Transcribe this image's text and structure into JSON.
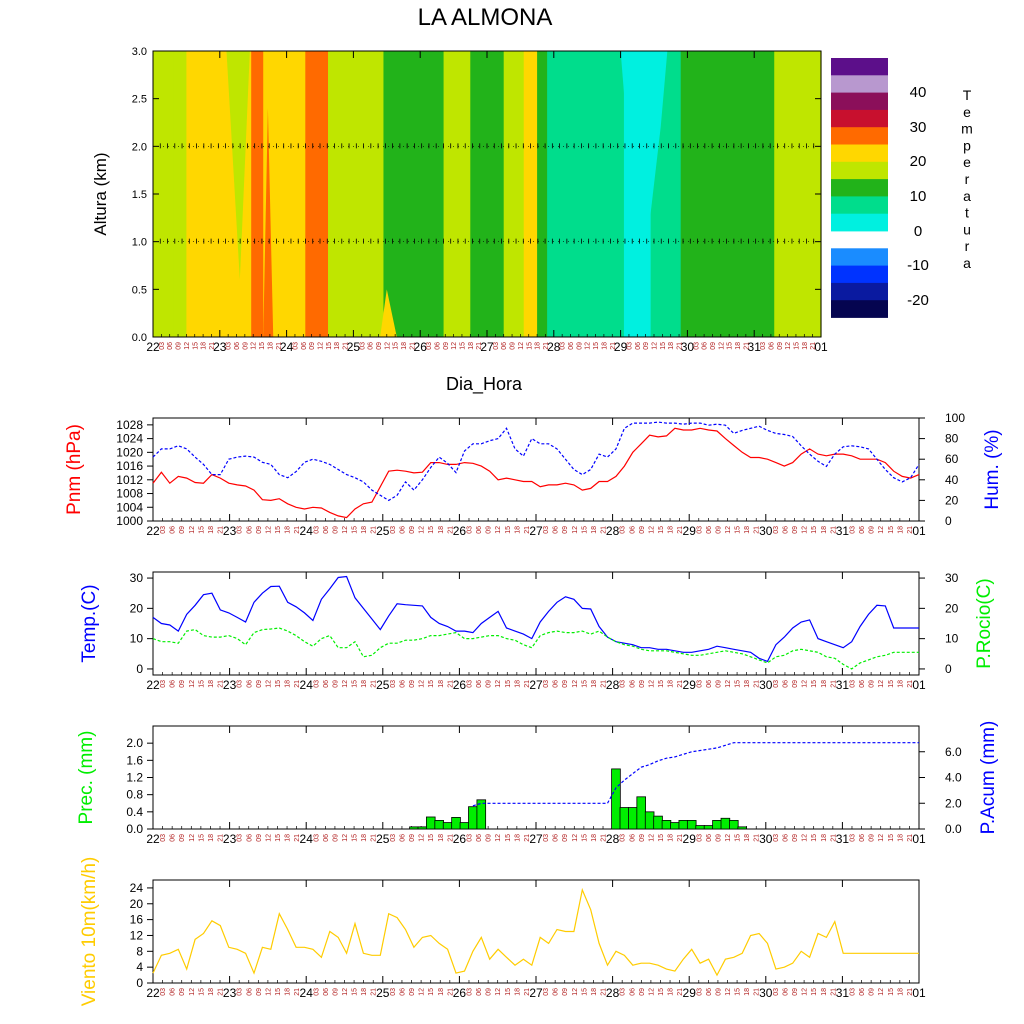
{
  "title": "LA ALMONA",
  "chart_data": [
    {
      "id": "profile",
      "type": "heatmap",
      "title": "LA ALMONA",
      "xlabel": "Dia_Hora",
      "ylabel": "Altura (km)",
      "ylim": [
        0,
        3
      ],
      "yticks": [
        "0.0",
        "0.5",
        "1.0",
        "1.5",
        "2.0",
        "2.5",
        "3.0"
      ],
      "xlim": [
        0,
        10
      ],
      "day_labels": [
        "22",
        "23",
        "24",
        "25",
        "26",
        "27",
        "28",
        "29",
        "30",
        "31",
        "01"
      ],
      "hour_labels": [
        "03",
        "06",
        "09",
        "12",
        "15",
        "18",
        "21"
      ],
      "colorbar": {
        "label_letters": [
          "T",
          "e",
          "m",
          "p",
          "e",
          "r",
          "a",
          "t",
          "u",
          "r",
          "a"
        ],
        "labels": [
          "40",
          "30",
          "20",
          "10",
          "0",
          "-10",
          "-20"
        ],
        "colors": [
          "#5c0f8a",
          "#b898cf",
          "#8b0f5a",
          "#c8102e",
          "#ff6a00",
          "#ffd700",
          "#bfe600",
          "#22b31a",
          "#00dd8c",
          "#00f0e0",
          "#ffffff",
          "#1a8cff",
          "#0033ff",
          "#0a1aa0",
          "#050550"
        ]
      },
      "bands": [
        {
          "start": 0.0,
          "end": 0.3,
          "temp": 18
        },
        {
          "start": 0.3,
          "end": 0.5,
          "temp": 20
        },
        {
          "start": 0.5,
          "end": 1.47,
          "temp": 22
        },
        {
          "start": 1.47,
          "end": 1.65,
          "temp": 27
        },
        {
          "start": 1.65,
          "end": 2.28,
          "temp": 22
        },
        {
          "start": 2.28,
          "end": 2.62,
          "temp": 27
        },
        {
          "start": 2.62,
          "end": 3.45,
          "temp": 18
        },
        {
          "start": 3.45,
          "end": 3.85,
          "temp": 12
        },
        {
          "start": 3.85,
          "end": 4.35,
          "temp": 12
        },
        {
          "start": 4.35,
          "end": 4.75,
          "temp": 18
        },
        {
          "start": 4.75,
          "end": 5.25,
          "temp": 12
        },
        {
          "start": 5.25,
          "end": 5.55,
          "temp": 18
        },
        {
          "start": 5.55,
          "end": 5.75,
          "temp": 22
        },
        {
          "start": 5.75,
          "end": 5.9,
          "temp": 12
        },
        {
          "start": 5.9,
          "end": 7.05,
          "temp": 5
        },
        {
          "start": 7.05,
          "end": 7.45,
          "temp": 3
        },
        {
          "start": 7.45,
          "end": 7.9,
          "temp": 5
        },
        {
          "start": 7.9,
          "end": 8.7,
          "temp": 12
        },
        {
          "start": 8.7,
          "end": 9.0,
          "temp": 12
        },
        {
          "start": 9.0,
          "end": 9.3,
          "temp": 12
        },
        {
          "start": 9.3,
          "end": 10.0,
          "temp": 18
        }
      ]
    },
    {
      "id": "pressure",
      "type": "line",
      "ylabel_left": "Pnm (hPa)",
      "ylabel_right": "Hum. (%)",
      "ylim_left": [
        1000,
        1030
      ],
      "ylim_right": [
        0,
        100
      ],
      "yticks_left": [
        "1000",
        "1004",
        "1008",
        "1012",
        "1016",
        "1020",
        "1024",
        "1028"
      ],
      "yticks_right": [
        "0",
        "20",
        "40",
        "60",
        "80",
        "100"
      ],
      "series": [
        {
          "name": "Pnm (hPa)",
          "color": "#ff0000",
          "axis": "left",
          "values": [
            1011.0,
            1014.2,
            1011.0,
            1013.0,
            1012.5,
            1011.2,
            1011.0,
            1013.5,
            1012.5,
            1011.0,
            1010.5,
            1010.2,
            1009.0,
            1006.2,
            1006.0,
            1006.5,
            1005.0,
            1004.0,
            1003.5,
            1004.0,
            1003.8,
            1002.5,
            1001.5,
            1001.0,
            1003.5,
            1005.0,
            1005.5,
            1010.0,
            1014.5,
            1014.8,
            1014.5,
            1014.0,
            1014.2,
            1017.0,
            1017.0,
            1016.5,
            1016.5,
            1017.0,
            1016.8,
            1016.0,
            1014.5,
            1012.0,
            1012.5,
            1012.0,
            1011.5,
            1011.5,
            1010.0,
            1010.5,
            1010.5,
            1011.0,
            1010.5,
            1009.0,
            1009.5,
            1011.5,
            1011.5,
            1013.0,
            1016.0,
            1020.0,
            1022.5,
            1025.0,
            1024.5,
            1024.8,
            1027.0,
            1026.5,
            1026.5,
            1027.0,
            1026.5,
            1026.2,
            1024.0,
            1022.0,
            1020.0,
            1018.5,
            1018.5,
            1018.0,
            1017.0,
            1016.0,
            1017.0,
            1019.5,
            1021.0,
            1019.5,
            1019.0,
            1019.5,
            1019.5,
            1019.0,
            1018.0,
            1018.0,
            1018.0,
            1017.0,
            1014.5,
            1013.0,
            1012.5,
            1013.5
          ]
        },
        {
          "name": "Hum. (%)",
          "color": "#0000ff",
          "axis": "right",
          "dashed": true,
          "values": [
            62,
            70,
            70,
            73,
            70,
            62,
            55,
            45,
            45,
            60,
            62,
            63,
            62,
            57,
            55,
            45,
            42,
            48,
            57,
            60,
            58,
            55,
            50,
            45,
            42,
            38,
            30,
            25,
            20,
            25,
            38,
            30,
            40,
            52,
            62,
            56,
            47,
            68,
            75,
            75,
            78,
            80,
            90,
            70,
            63,
            80,
            75,
            75,
            70,
            60,
            50,
            45,
            50,
            65,
            62,
            70,
            90,
            95,
            95,
            95,
            96,
            95,
            95,
            94,
            95,
            95,
            93,
            94,
            93,
            85,
            88,
            90,
            92,
            88,
            85,
            84,
            82,
            73,
            65,
            58,
            53,
            65,
            72,
            73,
            72,
            70,
            60,
            50,
            42,
            38,
            42,
            55
          ]
        }
      ]
    },
    {
      "id": "temperature",
      "type": "line",
      "ylabel_left": "Temp.(C)",
      "ylabel_right": "P.Rocio(C)",
      "ylim": [
        -2,
        32
      ],
      "yticks_left": [
        "0",
        "10",
        "20",
        "30"
      ],
      "yticks_right": [
        "0",
        "10",
        "20",
        "30"
      ],
      "series": [
        {
          "name": "Temp.(C)",
          "color": "#0000ff",
          "axis": "left",
          "values": [
            17,
            15,
            14.5,
            12.5,
            18,
            21,
            24.5,
            25,
            19.5,
            18.5,
            17,
            15.5,
            22,
            25,
            27.2,
            27.3,
            22,
            20.5,
            18.5,
            16,
            23,
            26.5,
            30.2,
            30.5,
            23.5,
            20,
            16.5,
            13,
            17.5,
            21.5,
            21.2,
            21,
            20.8,
            17,
            15,
            14,
            12.5,
            12.5,
            12,
            15,
            17,
            19,
            13.5,
            12.5,
            11.5,
            10,
            15.5,
            19,
            22,
            23.8,
            23,
            20,
            19.8,
            14,
            10.5,
            9,
            8.5,
            8,
            7,
            7,
            6.5,
            6.5,
            6,
            5.5,
            5.5,
            6,
            6.5,
            7.5,
            7,
            6.5,
            6,
            5.5,
            3.5,
            2.5,
            8,
            10.5,
            13.5,
            15.5,
            16.2,
            10,
            9,
            8,
            7,
            9,
            14,
            18,
            21,
            20.8,
            13.5,
            13.5,
            13.5,
            13.5
          ]
        },
        {
          "name": "P.Rocio(C)",
          "color": "#00ee00",
          "axis": "left",
          "dashed": true,
          "values": [
            10,
            9,
            9,
            8.5,
            12.5,
            13,
            11,
            10.5,
            10.5,
            11,
            10,
            8,
            12,
            13,
            13.2,
            13.5,
            12.5,
            11,
            9,
            7.5,
            10,
            11,
            7,
            7,
            9,
            4,
            4.5,
            7,
            8.5,
            8.5,
            9.5,
            9.5,
            10,
            11,
            11,
            11.5,
            12,
            10,
            10,
            10.5,
            11,
            11,
            10,
            9.5,
            8,
            7,
            11,
            12,
            12.5,
            12,
            12,
            12.5,
            11.5,
            12.5,
            10.5,
            9,
            8,
            7.5,
            6.5,
            6,
            6,
            6,
            5.5,
            5,
            4.5,
            4.5,
            5,
            5.5,
            6,
            5.5,
            5,
            4,
            3,
            2,
            4,
            4.5,
            6,
            6.5,
            6,
            5.5,
            4,
            3.5,
            1.5,
            0,
            2,
            3,
            4,
            4.5,
            5.5,
            5.5,
            5.5,
            5.5
          ]
        }
      ]
    },
    {
      "id": "precip",
      "type": "bar",
      "ylabel_left": "Prec. (mm)",
      "ylabel_right": "P.Acum (mm)",
      "ylim_left": [
        0,
        2.4
      ],
      "ylim_right": [
        0,
        8.0
      ],
      "yticks_left": [
        "0.0",
        "0.4",
        "0.8",
        "1.2",
        "1.6",
        "2.0"
      ],
      "yticks_right": [
        "0.0",
        "2.0",
        "4.0",
        "6.0"
      ],
      "series": [
        {
          "name": "Prec. (mm)",
          "color": "#00ee00",
          "axis": "left",
          "values": [
            0,
            0,
            0,
            0,
            0,
            0,
            0,
            0,
            0,
            0,
            0,
            0,
            0,
            0,
            0,
            0,
            0,
            0,
            0,
            0,
            0,
            0,
            0,
            0,
            0,
            0,
            0,
            0,
            0,
            0,
            0,
            0.05,
            0.05,
            0.28,
            0.2,
            0.15,
            0.27,
            0.15,
            0.52,
            0.68,
            0,
            0,
            0,
            0,
            0,
            0,
            0,
            0,
            0,
            0,
            0,
            0,
            0,
            0,
            0,
            1.4,
            0.5,
            0.5,
            0.75,
            0.4,
            0.3,
            0.2,
            0.15,
            0.2,
            0.2,
            0.08,
            0.08,
            0.2,
            0.25,
            0.2,
            0.05,
            0,
            0,
            0,
            0,
            0,
            0,
            0,
            0,
            0,
            0,
            0,
            0,
            0,
            0,
            0,
            0,
            0,
            0,
            0,
            0
          ]
        },
        {
          "name": "P.Acum (mm)",
          "color": "#0000ff",
          "axis": "right",
          "dashed": true,
          "values": [
            null,
            null,
            null,
            null,
            null,
            null,
            null,
            null,
            null,
            null,
            null,
            null,
            null,
            null,
            null,
            null,
            null,
            null,
            null,
            null,
            null,
            null,
            null,
            null,
            null,
            null,
            null,
            null,
            null,
            null,
            null,
            null,
            null,
            null,
            null,
            null,
            null,
            null,
            1.8,
            2.0,
            2.0,
            2.0,
            2.0,
            2.0,
            2.0,
            2.0,
            2.0,
            2.0,
            2.0,
            2.0,
            2.0,
            2.0,
            2.0,
            2.0,
            2.0,
            3.2,
            3.8,
            4.3,
            4.8,
            5.0,
            5.3,
            5.5,
            5.6,
            5.8,
            6.0,
            6.1,
            6.2,
            6.3,
            6.5,
            6.7,
            6.7,
            6.7,
            6.7,
            6.7,
            6.7,
            6.7,
            6.7,
            6.7,
            6.7,
            6.7,
            6.7,
            6.7,
            6.7,
            6.7,
            6.7,
            6.7,
            6.7,
            6.7,
            6.7,
            6.7,
            6.7,
            6.7
          ]
        }
      ]
    },
    {
      "id": "wind",
      "type": "line",
      "ylabel_left": "Viento 10m(km/h)",
      "ylim": [
        0,
        26
      ],
      "yticks_left": [
        "0",
        "4",
        "8",
        "12",
        "16",
        "20",
        "24"
      ],
      "series": [
        {
          "name": "Viento 10m(km/h)",
          "color": "#ffcc00",
          "axis": "left",
          "values": [
            2.5,
            7,
            7.5,
            8.5,
            3.5,
            11,
            12.5,
            15.7,
            14.5,
            9,
            8.5,
            7.5,
            2.5,
            9,
            8.5,
            17.5,
            13.5,
            9,
            9,
            8.5,
            6.5,
            13,
            11.5,
            7.5,
            15,
            7.5,
            7,
            7,
            17.5,
            16.5,
            13.5,
            9,
            11.5,
            12,
            10,
            8.5,
            2.5,
            3,
            8,
            11.5,
            6,
            8.5,
            6.5,
            4.5,
            6,
            4.5,
            11.5,
            10,
            13.5,
            13,
            13,
            23.5,
            18.5,
            10,
            4.5,
            8,
            7,
            4.5,
            5,
            5,
            4.5,
            3.5,
            3,
            6,
            8.5,
            5,
            6,
            2,
            6,
            6.5,
            7.5,
            12,
            12.5,
            10,
            3.5,
            4,
            5,
            8,
            6.5,
            12.5,
            11.5,
            15.5,
            7.5,
            7.5,
            7.5,
            7.5,
            7.5,
            7.5,
            7.5,
            7.5,
            7.5,
            7.5
          ]
        }
      ]
    }
  ]
}
